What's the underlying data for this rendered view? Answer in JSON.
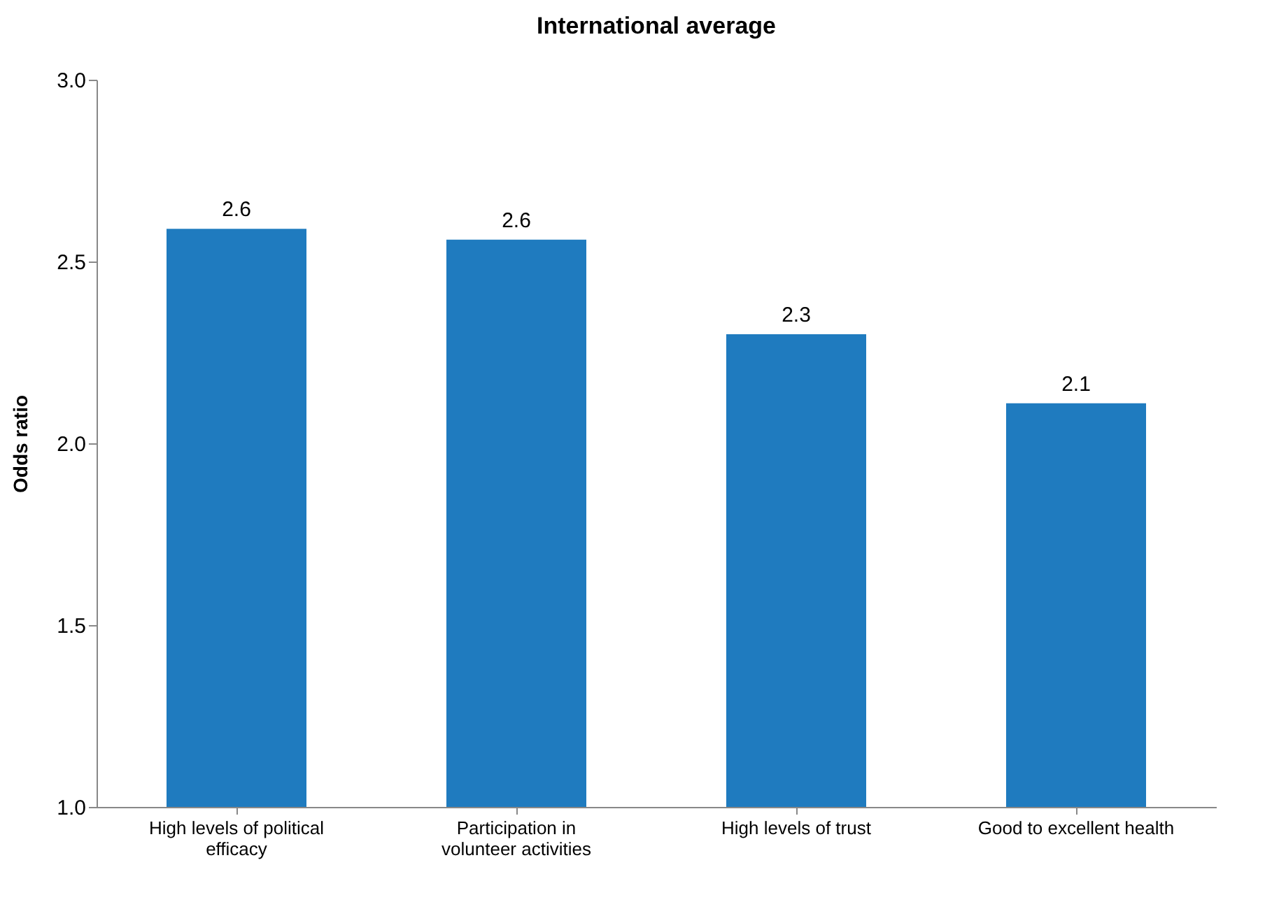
{
  "chart_data": {
    "type": "bar",
    "title": "International average",
    "ylabel": "Odds ratio",
    "categories": [
      "High levels of political efficacy",
      "Participation in volunteer activities",
      "High levels of trust",
      "Good to excellent health"
    ],
    "values": [
      2.59,
      2.56,
      2.3,
      2.11
    ],
    "value_labels": [
      "2.6",
      "2.6",
      "2.3",
      "2.1"
    ],
    "color": "#1f7bbf",
    "ylim": [
      1,
      3
    ],
    "yticks": [
      {
        "value": 1,
        "label": "1.0"
      },
      {
        "value": 1.5,
        "label": "1.5"
      },
      {
        "value": 2,
        "label": "2.0"
      },
      {
        "value": 2.5,
        "label": "2.5"
      },
      {
        "value": 3,
        "label": "3.0"
      }
    ],
    "grid": false
  }
}
